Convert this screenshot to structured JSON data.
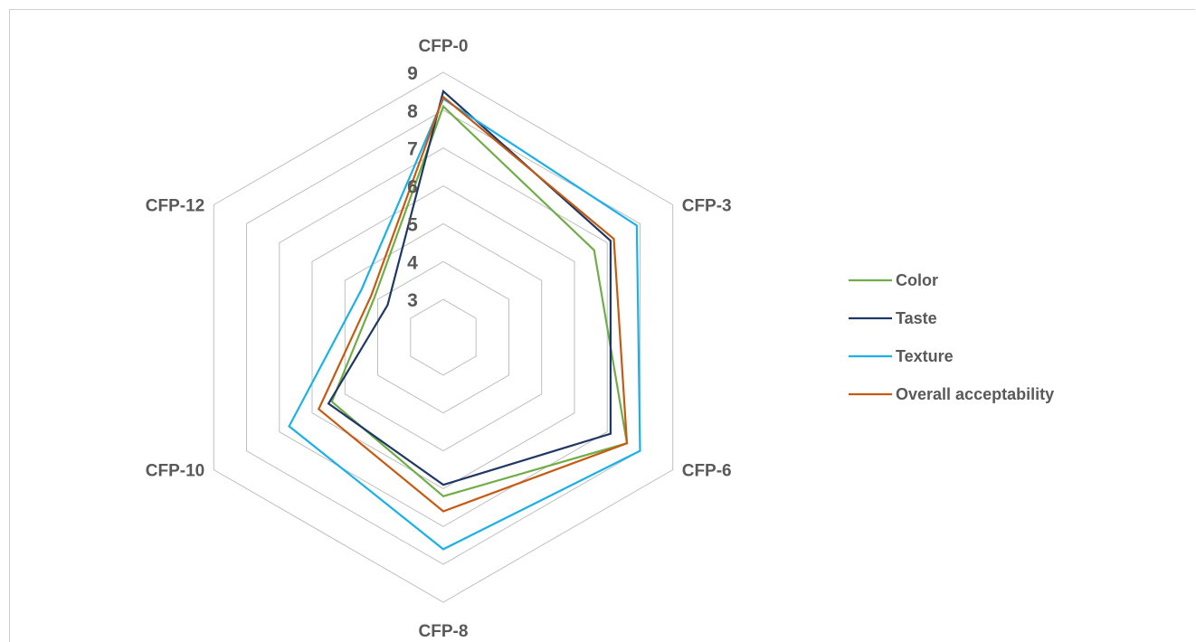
{
  "chart_data": {
    "type": "radar",
    "title": "",
    "categories": [
      "CFP-0",
      "CFP-3",
      "CFP-6",
      "CFP-8",
      "CFP-10",
      "CFP-12"
    ],
    "rlim": [
      2,
      9
    ],
    "ticks": [
      "3",
      "4",
      "5",
      "6",
      "7",
      "8",
      "9"
    ],
    "grid": true,
    "legend_position": "right",
    "series": [
      {
        "name": "Color",
        "color": "#70ad47",
        "values": [
          8.1,
          6.6,
          7.6,
          6.2,
          5.4,
          4.1
        ]
      },
      {
        "name": "Taste",
        "color": "#1f3864",
        "values": [
          8.5,
          7.1,
          7.1,
          5.9,
          5.5,
          3.7
        ]
      },
      {
        "name": "Texture",
        "color": "#1ab0e8",
        "values": [
          8.3,
          7.9,
          8.0,
          7.6,
          6.7,
          4.5
        ]
      },
      {
        "name": "Overall acceptability",
        "color": "#c55a11",
        "values": [
          8.35,
          7.2,
          7.6,
          6.6,
          5.8,
          4.2
        ]
      }
    ]
  }
}
